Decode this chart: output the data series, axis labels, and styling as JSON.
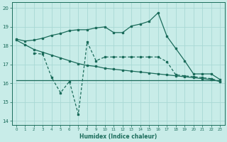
{
  "xlabel": "Humidex (Indice chaleur)",
  "xlim": [
    -0.5,
    23.5
  ],
  "ylim": [
    13.8,
    20.3
  ],
  "yticks": [
    14,
    15,
    16,
    17,
    18,
    19,
    20
  ],
  "xticks": [
    0,
    1,
    2,
    3,
    4,
    5,
    6,
    7,
    8,
    9,
    10,
    11,
    12,
    13,
    14,
    15,
    16,
    17,
    18,
    19,
    20,
    21,
    22,
    23
  ],
  "background_color": "#c8ece8",
  "grid_color": "#a8d8d4",
  "line_color": "#1a6b5a",
  "line1_x": [
    0,
    1,
    2,
    3,
    4,
    5,
    6,
    7,
    8,
    9,
    10,
    11,
    12,
    13,
    14,
    15,
    16,
    17,
    18,
    19,
    20,
    21,
    22,
    23
  ],
  "line1_y": [
    18.35,
    18.25,
    18.3,
    18.4,
    18.55,
    18.65,
    18.8,
    18.85,
    18.85,
    18.95,
    19.0,
    18.7,
    18.7,
    19.05,
    19.15,
    19.3,
    19.75,
    18.5,
    17.85,
    17.2,
    16.5,
    16.5,
    16.5,
    16.2
  ],
  "line2_x": [
    0,
    1,
    2,
    3,
    4,
    5,
    6,
    7,
    8,
    9,
    10,
    11,
    12,
    13,
    14,
    15,
    16,
    17,
    18,
    19,
    20,
    21,
    22,
    23
  ],
  "line2_y": [
    18.3,
    18.05,
    17.8,
    17.65,
    17.5,
    17.35,
    17.2,
    17.05,
    16.95,
    16.9,
    16.8,
    16.75,
    16.7,
    16.65,
    16.6,
    16.55,
    16.5,
    16.45,
    16.4,
    16.35,
    16.3,
    16.25,
    16.2,
    16.1
  ],
  "line3_x": [
    0,
    1,
    2,
    3,
    4,
    5,
    6,
    7,
    8,
    9,
    10,
    11,
    12,
    13,
    14,
    15,
    16,
    17,
    18,
    19,
    20,
    21,
    22,
    23
  ],
  "line3_y": [
    16.15,
    16.15,
    16.15,
    16.15,
    16.15,
    16.15,
    16.15,
    16.15,
    16.15,
    16.15,
    16.15,
    16.15,
    16.15,
    16.15,
    16.15,
    16.15,
    16.15,
    16.15,
    16.15,
    16.15,
    16.15,
    16.15,
    16.15,
    16.15
  ],
  "line4_x": [
    2,
    3,
    4,
    5,
    6,
    7,
    8,
    9,
    10,
    11,
    12,
    13,
    14,
    15,
    16,
    17,
    18,
    19,
    20,
    21,
    22,
    23
  ],
  "line4_y": [
    17.6,
    17.55,
    16.3,
    15.5,
    16.1,
    14.35,
    18.2,
    17.2,
    17.4,
    17.4,
    17.4,
    17.4,
    17.4,
    17.4,
    17.4,
    17.15,
    16.45,
    16.4,
    16.35,
    16.3,
    16.25,
    16.1
  ]
}
